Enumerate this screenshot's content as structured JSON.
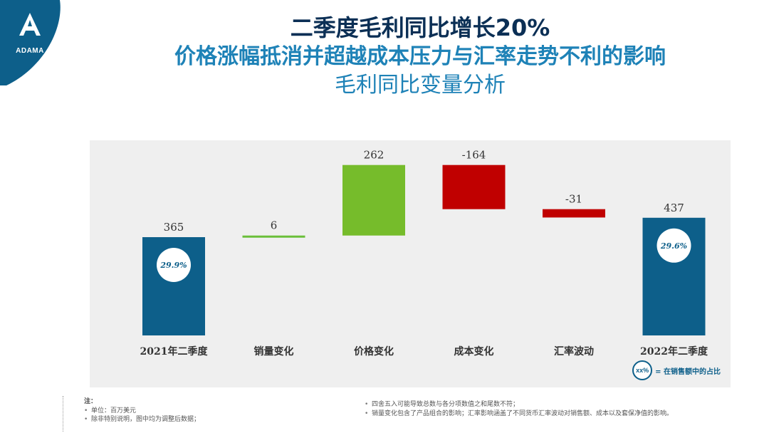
{
  "brand": {
    "name": "ADAMA",
    "color": "#0d5f8a"
  },
  "title": {
    "line1": "二季度毛利同比增长20%",
    "line2": "价格涨幅抵消并超越成本压力与汇率走势不利的影响",
    "line3": "毛利同比变量分析"
  },
  "chart_data": {
    "type": "bar",
    "subtype": "waterfall",
    "categories": [
      "2021年二季度",
      "销量变化",
      "价格变化",
      "成本变化",
      "汇率波动",
      "2022年二季度"
    ],
    "values": [
      365,
      6,
      262,
      -164,
      -31,
      437
    ],
    "data_labels": [
      "365",
      "6",
      "262",
      "-164",
      "-31",
      "437"
    ],
    "bar_roles": [
      "total",
      "delta",
      "delta",
      "delta",
      "delta",
      "total"
    ],
    "colors": {
      "total": "#0d5f8a",
      "increase_small": "#6abf3a",
      "increase": "#76bc2b",
      "decrease": "#c00000"
    },
    "margin_badges": [
      {
        "category": "2021年二季度",
        "text": "29.9%"
      },
      {
        "category": "2022年二季度",
        "text": "29.6%"
      }
    ],
    "ylim": [
      0,
      480
    ],
    "grid": false,
    "legend": {
      "marker": "xx%",
      "text": "= 在销售额中的占比",
      "position": "bottom-right"
    }
  },
  "notes": {
    "heading": "注：",
    "left": [
      "单位：百万美元",
      "除非特别说明，图中均为调整后数据；"
    ],
    "right": [
      "四舍五入可能导致总数与各分项数值之和尾数不符；",
      "销量变化包含了产品组合的影响；汇率影响涵盖了不同货币汇率波动对销售额、成本以及套保净值的影响。"
    ]
  }
}
